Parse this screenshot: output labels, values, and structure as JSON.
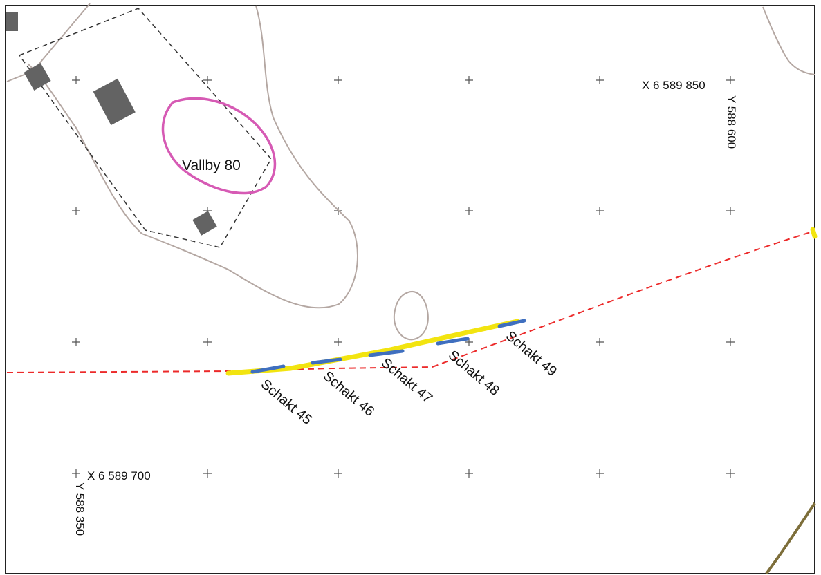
{
  "map": {
    "site": {
      "label": "Vallby 80"
    },
    "coordinates": {
      "ne": {
        "x": "X 6 589 850",
        "y": "Y 588 600"
      },
      "sw": {
        "x": "X 6 589 700",
        "y": "Y 588 350"
      }
    },
    "trenches": [
      {
        "label": "Schakt 45"
      },
      {
        "label": "Schakt 46"
      },
      {
        "label": "Schakt 47"
      },
      {
        "label": "Schakt 48"
      },
      {
        "label": "Schakt 49"
      }
    ],
    "colors": {
      "site_outline": "#d65ab4",
      "road_line": "#ec2a2a",
      "trench_fill": "#f2e410",
      "trench_marks": "#3f6fbf",
      "terrain_line": "#b4a7a2",
      "building": "#636363",
      "property_line": "#333333",
      "olive_line": "#7d6e3a"
    }
  }
}
